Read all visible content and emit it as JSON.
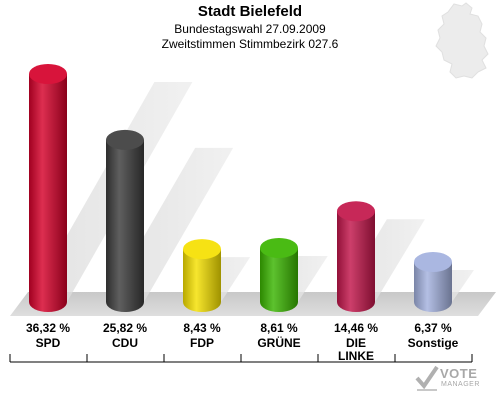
{
  "header": {
    "title": "Stadt Bielefeld",
    "subtitle1": "Bundestagswahl 27.09.2009",
    "subtitle2": "Zweitstimmen Stimmbezirk 027.6"
  },
  "logo": {
    "line1": "VOTE",
    "line2": "MANAGER"
  },
  "icons": {
    "map": "germany-map-icon",
    "logo_mark": "vote-check-icon"
  },
  "chart_data": {
    "type": "bar",
    "categories": [
      "SPD",
      "CDU",
      "FDP",
      "GRÜNE",
      "DIE LINKE",
      "Sonstige"
    ],
    "values": [
      36.32,
      25.82,
      8.43,
      8.61,
      14.46,
      6.37
    ],
    "value_labels": [
      "36,32 %",
      "25,82 %",
      "8,43 %",
      "8,61 %",
      "14,46 %",
      "6,37 %"
    ],
    "colors": [
      "#d5002a",
      "#3c3c3c",
      "#f5e000",
      "#3ab500",
      "#c2154a",
      "#a3b1de"
    ],
    "ylim": [
      0,
      40
    ],
    "grid": false,
    "legend": "none"
  }
}
